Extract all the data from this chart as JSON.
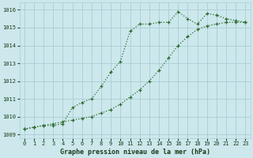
{
  "title": "Graphe pression niveau de la mer (hPa)",
  "bg_color": "#cce8ec",
  "grid_color": "#aacdd4",
  "line_color": "#2d6a2d",
  "xlim": [
    -0.5,
    23.5
  ],
  "ylim": [
    1008.8,
    1016.4
  ],
  "yticks": [
    1009,
    1010,
    1011,
    1012,
    1013,
    1014,
    1015,
    1016
  ],
  "xticks": [
    0,
    1,
    2,
    3,
    4,
    5,
    6,
    7,
    8,
    9,
    10,
    11,
    12,
    13,
    14,
    15,
    16,
    17,
    18,
    19,
    20,
    21,
    22,
    23
  ],
  "series1_x": [
    0,
    1,
    2,
    3,
    4,
    5,
    6,
    7,
    8,
    9,
    10,
    11,
    12,
    13,
    14,
    15,
    16,
    17,
    18,
    19,
    20,
    21,
    22,
    23
  ],
  "series1_y": [
    1009.3,
    1009.4,
    1009.5,
    1009.5,
    1009.6,
    1010.5,
    1010.8,
    1011.0,
    1011.7,
    1012.5,
    1013.1,
    1014.8,
    1015.2,
    1015.2,
    1015.3,
    1015.3,
    1015.9,
    1015.5,
    1015.2,
    1015.8,
    1015.7,
    1015.5,
    1015.4,
    1015.3
  ],
  "series2_x": [
    0,
    1,
    2,
    3,
    4,
    5,
    6,
    7,
    8,
    9,
    10,
    11,
    12,
    13,
    14,
    15,
    16,
    17,
    18,
    19,
    20,
    21,
    22,
    23
  ],
  "series2_y": [
    1009.3,
    1009.4,
    1009.5,
    1009.6,
    1009.7,
    1009.8,
    1009.9,
    1010.0,
    1010.2,
    1010.4,
    1010.7,
    1011.1,
    1011.5,
    1012.0,
    1012.6,
    1013.3,
    1014.0,
    1014.5,
    1014.9,
    1015.1,
    1015.2,
    1015.3,
    1015.3,
    1015.3
  ]
}
